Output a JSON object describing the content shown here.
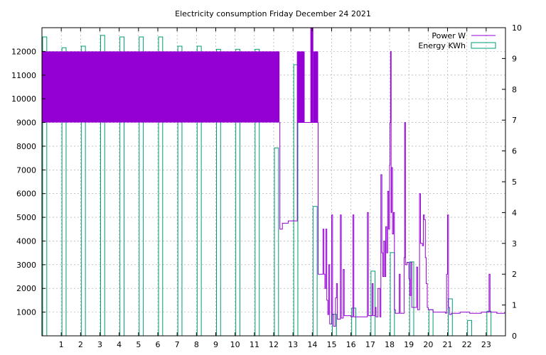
{
  "chart_data": {
    "type": "bar",
    "title": "Electricity consumption Friday December 24 2021",
    "x_ticks": [
      "1",
      "2",
      "3",
      "4",
      "5",
      "6",
      "7",
      "8",
      "9",
      "10",
      "11",
      "12",
      "13",
      "14",
      "15",
      "16",
      "17",
      "18",
      "19",
      "20",
      "21",
      "22",
      "23"
    ],
    "x_range": [
      0,
      24
    ],
    "y_left": {
      "ticks": [
        "1000",
        "2000",
        "3000",
        "4000",
        "5000",
        "6000",
        "7000",
        "8000",
        "9000",
        "10000",
        "11000",
        "12000"
      ],
      "range": [
        0,
        13000
      ]
    },
    "y_right": {
      "ticks": [
        "0",
        "1",
        "2",
        "3",
        "4",
        "5",
        "6",
        "7",
        "8",
        "9",
        "10"
      ],
      "range": [
        0,
        10
      ]
    },
    "grid": true,
    "legend_position": "top-right",
    "series": [
      {
        "name": "Energy KWh",
        "axis": "right",
        "color": "#009e73",
        "style": "boxes",
        "x": [
          0,
          1,
          2,
          3,
          4,
          5,
          6,
          7,
          8,
          9,
          10,
          11,
          12,
          13,
          14,
          15,
          16,
          17,
          18,
          19,
          20,
          21,
          22,
          23
        ],
        "values": [
          9.7,
          9.35,
          9.4,
          9.75,
          9.7,
          9.7,
          9.7,
          9.4,
          9.4,
          9.3,
          9.3,
          9.3,
          6.1,
          8.8,
          4.2,
          0.7,
          0.9,
          2.1,
          2.7,
          2.4,
          0.85,
          1.2,
          0.5,
          0.8
        ]
      },
      {
        "name": "Power W",
        "axis": "left",
        "color": "#9400d3",
        "style": "line",
        "band_segments": [
          {
            "from": 0.0,
            "to": 12.3,
            "low": 9000,
            "high": 12000
          },
          {
            "from": 13.2,
            "to": 13.6,
            "low": 9000,
            "high": 12000
          },
          {
            "from": 13.9,
            "to": 14.05,
            "low": 9000,
            "high": 13000
          },
          {
            "from": 14.05,
            "to": 14.3,
            "low": 9000,
            "high": 12000
          }
        ],
        "points": [
          [
            12.3,
            9000
          ],
          [
            12.32,
            4500
          ],
          [
            12.45,
            4750
          ],
          [
            12.7,
            4750
          ],
          [
            12.75,
            4850
          ],
          [
            13.2,
            4850
          ],
          [
            13.22,
            9000
          ],
          [
            14.3,
            2600
          ],
          [
            14.5,
            2600
          ],
          [
            14.55,
            4500
          ],
          [
            14.6,
            2600
          ],
          [
            14.65,
            2000
          ],
          [
            14.7,
            4500
          ],
          [
            14.75,
            1500
          ],
          [
            14.8,
            900
          ],
          [
            14.85,
            3000
          ],
          [
            14.9,
            500
          ],
          [
            15.0,
            5100
          ],
          [
            15.05,
            900
          ],
          [
            15.1,
            400
          ],
          [
            15.2,
            1600
          ],
          [
            15.25,
            2200
          ],
          [
            15.3,
            700
          ],
          [
            15.4,
            700
          ],
          [
            15.45,
            5100
          ],
          [
            15.5,
            750
          ],
          [
            15.6,
            2800
          ],
          [
            15.65,
            850
          ],
          [
            15.9,
            850
          ],
          [
            16.0,
            800
          ],
          [
            16.1,
            5100
          ],
          [
            16.15,
            800
          ],
          [
            16.8,
            800
          ],
          [
            16.85,
            5200
          ],
          [
            16.9,
            850
          ],
          [
            17.0,
            850
          ],
          [
            17.1,
            2200
          ],
          [
            17.15,
            850
          ],
          [
            17.25,
            1200
          ],
          [
            17.3,
            800
          ],
          [
            17.4,
            2000
          ],
          [
            17.5,
            800
          ],
          [
            17.55,
            6800
          ],
          [
            17.6,
            3500
          ],
          [
            17.65,
            2500
          ],
          [
            17.7,
            4000
          ],
          [
            17.75,
            2500
          ],
          [
            17.8,
            4600
          ],
          [
            17.85,
            3500
          ],
          [
            17.9,
            6100
          ],
          [
            17.95,
            4500
          ],
          [
            18.0,
            7200
          ],
          [
            18.02,
            9000
          ],
          [
            18.05,
            12000
          ],
          [
            18.08,
            5200
          ],
          [
            18.1,
            7100
          ],
          [
            18.15,
            4300
          ],
          [
            18.2,
            5200
          ],
          [
            18.25,
            1100
          ],
          [
            18.3,
            950
          ],
          [
            18.45,
            950
          ],
          [
            18.5,
            2600
          ],
          [
            18.55,
            950
          ],
          [
            18.7,
            950
          ],
          [
            18.75,
            3300
          ],
          [
            18.78,
            9000
          ],
          [
            18.82,
            3000
          ],
          [
            18.9,
            3100
          ],
          [
            19.0,
            2400
          ],
          [
            19.05,
            1700
          ],
          [
            19.1,
            3100
          ],
          [
            19.15,
            1200
          ],
          [
            19.35,
            1200
          ],
          [
            19.4,
            2900
          ],
          [
            19.45,
            1100
          ],
          [
            19.55,
            6000
          ],
          [
            19.6,
            3900
          ],
          [
            19.7,
            3800
          ],
          [
            19.75,
            5100
          ],
          [
            19.8,
            4900
          ],
          [
            19.85,
            3300
          ],
          [
            19.9,
            2200
          ],
          [
            19.95,
            1200
          ],
          [
            20.0,
            1100
          ],
          [
            20.2,
            1100
          ],
          [
            20.25,
            1000
          ],
          [
            20.9,
            950
          ],
          [
            20.95,
            2600
          ],
          [
            21.0,
            5100
          ],
          [
            21.05,
            1200
          ],
          [
            21.1,
            900
          ],
          [
            21.2,
            950
          ],
          [
            21.6,
            950
          ],
          [
            21.65,
            1000
          ],
          [
            22.1,
            1000
          ],
          [
            22.15,
            950
          ],
          [
            22.7,
            950
          ],
          [
            22.75,
            1000
          ],
          [
            23.1,
            1000
          ],
          [
            23.15,
            2600
          ],
          [
            23.2,
            1000
          ],
          [
            23.5,
            1000
          ],
          [
            23.55,
            950
          ],
          [
            23.9,
            950
          ],
          [
            23.95,
            1000
          ]
        ]
      }
    ]
  }
}
